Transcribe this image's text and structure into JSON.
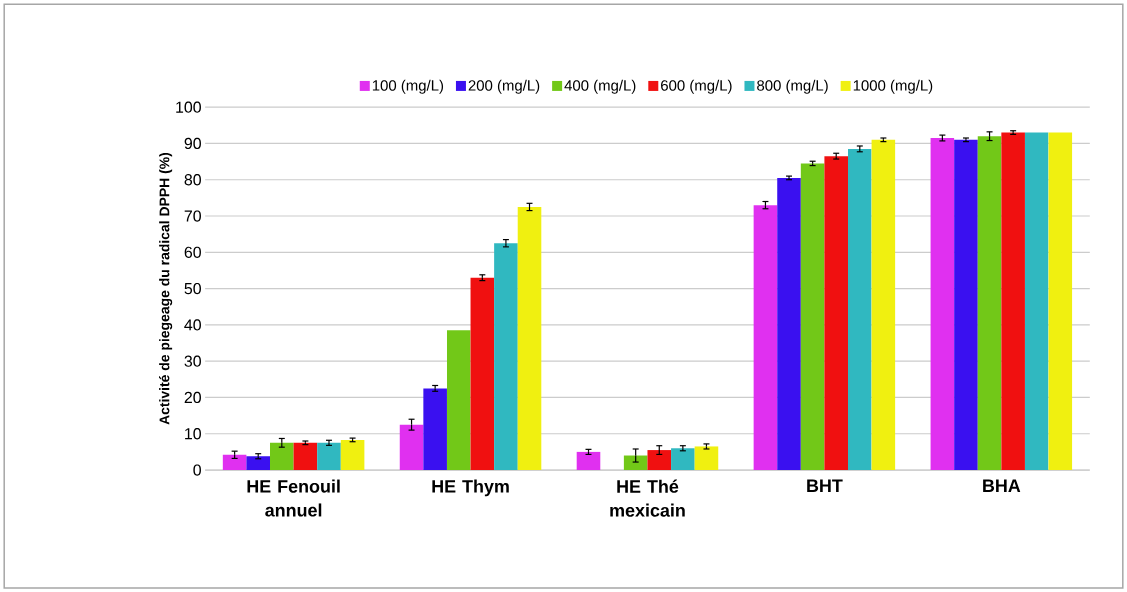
{
  "chart_data": {
    "type": "bar",
    "ylabel": "Activité de piegeage du radical DPPH (%)",
    "categories": [
      "HE Fenouil annuel",
      "HE Thym",
      "HE Thé mexicain",
      "BHT",
      "BHA"
    ],
    "series": [
      {
        "name": "100 (mg/L)",
        "color": "#e030f0",
        "values": [
          4.2,
          12.5,
          5,
          73,
          91.5
        ],
        "errors": [
          1,
          1.5,
          0.7,
          1,
          0.8
        ]
      },
      {
        "name": "200 (mg/L)",
        "color": "#3a10f0",
        "values": [
          3.8,
          22.5,
          null,
          80.5,
          91
        ],
        "errors": [
          0.7,
          0.8,
          null,
          0.5,
          0.5
        ]
      },
      {
        "name": "400 (mg/L)",
        "color": "#72c818",
        "values": [
          7.5,
          38.5,
          4,
          84.5,
          92
        ],
        "errors": [
          1.2,
          null,
          1.8,
          0.6,
          1.2
        ]
      },
      {
        "name": "600 (mg/L)",
        "color": "#f01010",
        "values": [
          7.5,
          53,
          5.5,
          86.5,
          93
        ],
        "errors": [
          0.5,
          0.8,
          1.2,
          0.8,
          0.5
        ]
      },
      {
        "name": "800 (mg/L)",
        "color": "#30b8c0",
        "values": [
          7.5,
          62.5,
          6,
          88.5,
          93
        ],
        "errors": [
          0.7,
          1,
          0.7,
          0.8,
          null
        ]
      },
      {
        "name": "1000 (mg/L)",
        "color": "#f0f010",
        "values": [
          8.3,
          72.5,
          6.5,
          91,
          93
        ],
        "errors": [
          0.5,
          1,
          0.7,
          0.5,
          null
        ]
      }
    ],
    "ylim": [
      0,
      100
    ],
    "yticks": [
      0,
      10,
      20,
      30,
      40,
      50,
      60,
      70,
      80,
      90,
      100
    ],
    "grid": "y",
    "legend": "top"
  }
}
